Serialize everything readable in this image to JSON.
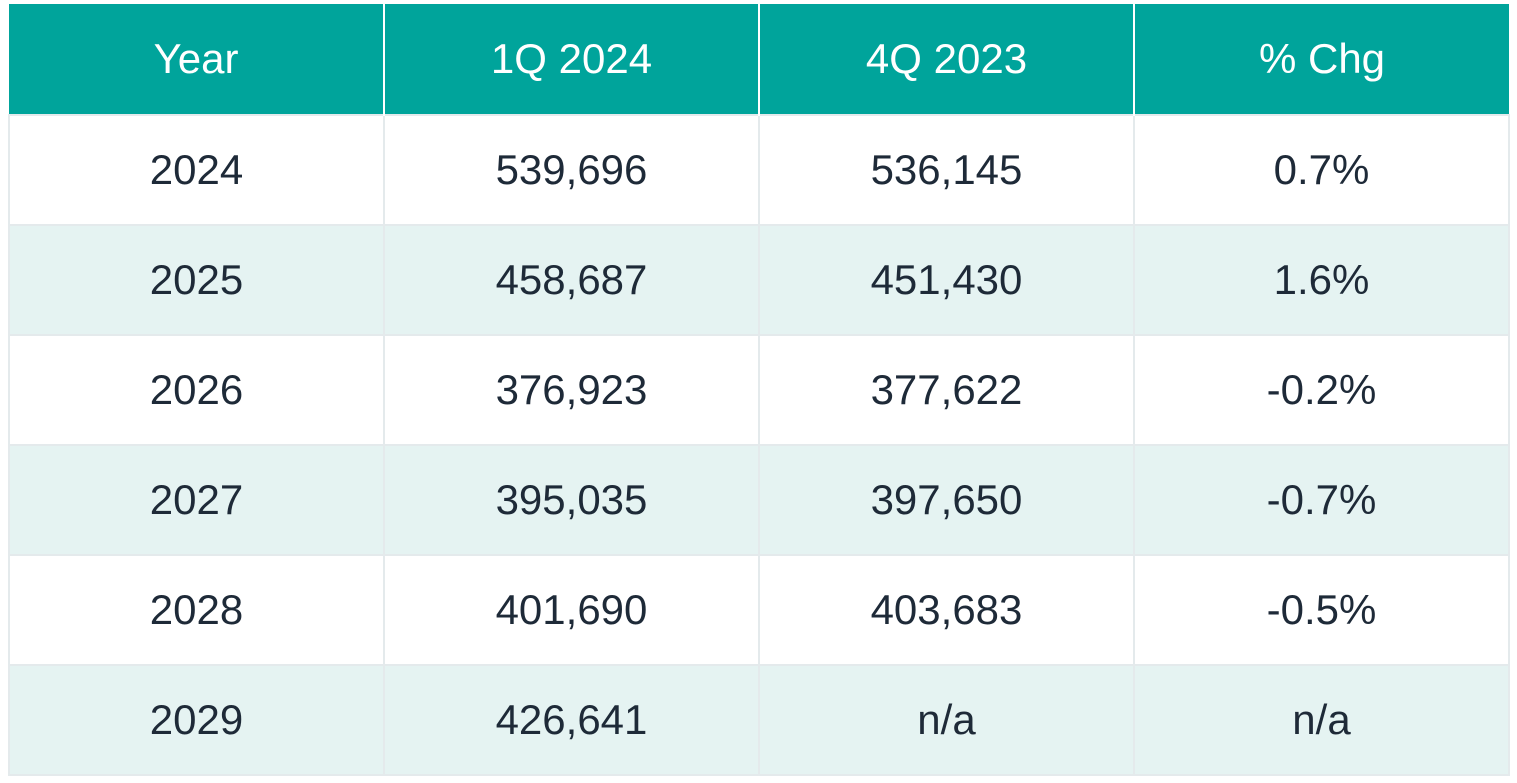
{
  "table": {
    "headers": [
      "Year",
      "1Q 2024",
      "4Q 2023",
      "% Chg"
    ],
    "rows": [
      [
        "2024",
        "539,696",
        "536,145",
        "0.7%"
      ],
      [
        "2025",
        "458,687",
        "451,430",
        "1.6%"
      ],
      [
        "2026",
        "376,923",
        "377,622",
        "-0.2%"
      ],
      [
        "2027",
        "395,035",
        "397,650",
        "-0.7%"
      ],
      [
        "2028",
        "401,690",
        "403,683",
        "-0.5%"
      ],
      [
        "2029",
        "426,641",
        "n/a",
        "n/a"
      ]
    ]
  },
  "colors": {
    "header_bg": "#00a49b",
    "header_text": "#ffffff",
    "row_alt_bg": "#e5f3f2",
    "cell_text": "#1e2a38"
  }
}
